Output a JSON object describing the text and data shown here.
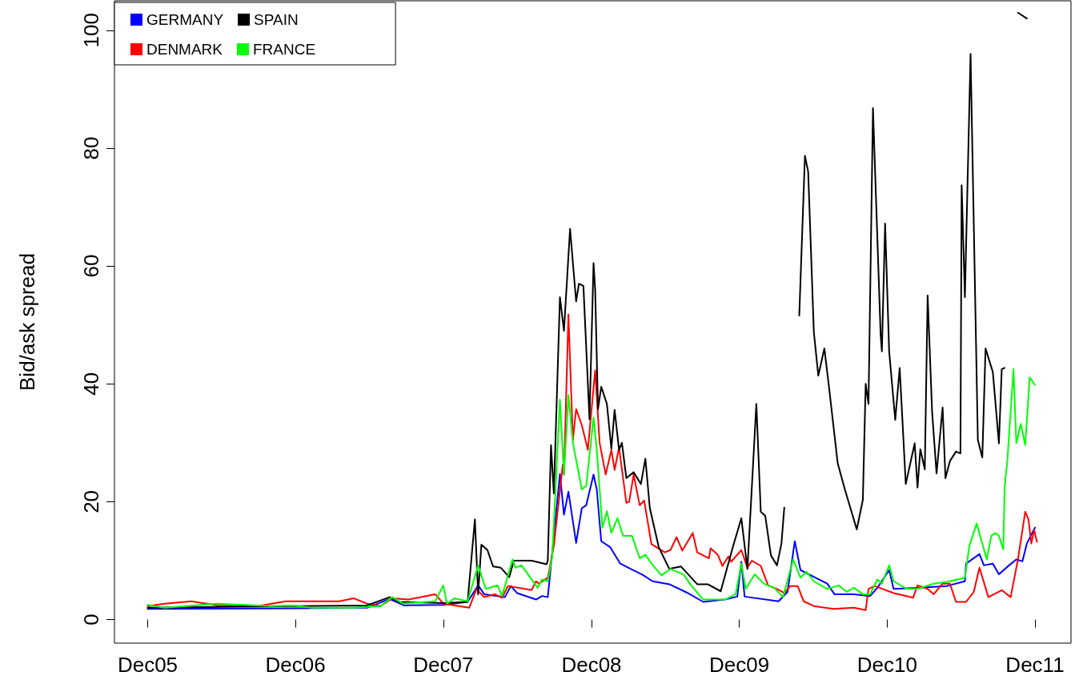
{
  "chart_data": {
    "type": "line",
    "ylabel": "Bid/ask spread",
    "legend": "top left",
    "grid": false,
    "marker": "none",
    "xlim": [
      "2005-09-10",
      "2012-02-28"
    ],
    "xticks": [
      {
        "value": "2005-12-01",
        "label": "Dec05"
      },
      {
        "value": "2006-12-01",
        "label": "Dec06"
      },
      {
        "value": "2007-12-01",
        "label": "Dec07"
      },
      {
        "value": "2008-12-01",
        "label": "Dec08"
      },
      {
        "value": "2009-12-01",
        "label": "Dec09"
      },
      {
        "value": "2010-12-01",
        "label": "Dec10"
      },
      {
        "value": "2011-12-01",
        "label": "Dec11"
      }
    ],
    "ylim": [
      -4,
      105
    ],
    "yticks": [
      0,
      20,
      40,
      60,
      80,
      100
    ],
    "series": [
      {
        "name": "GERMANY",
        "color": "#0000ff",
        "x": [
          "2005-12-01",
          "2006-12-01",
          "2007-05-27",
          "2007-07-21",
          "2007-08-26",
          "2007-12-01",
          "2008-01-30",
          "2008-02-25",
          "2008-03-11",
          "2008-05-01",
          "2008-05-16",
          "2008-05-31",
          "2008-07-17",
          "2008-08-01",
          "2008-08-15",
          "2008-08-19",
          "2008-09-14",
          "2008-09-24",
          "2008-10-05",
          "2008-10-24",
          "2008-11-07",
          "2008-11-18",
          "2008-12-06",
          "2008-12-14",
          "2008-12-25",
          "2009-01-16",
          "2009-02-10",
          "2009-03-11",
          "2009-04-06",
          "2009-05-01",
          "2009-06-11",
          "2009-07-24",
          "2009-09-03",
          "2009-10-27",
          "2009-11-26",
          "2009-12-06",
          "2009-12-14",
          "2010-03-08",
          "2010-03-30",
          "2010-04-17",
          "2010-05-01",
          "2010-07-06",
          "2010-07-24",
          "2010-09-10",
          "2010-10-20",
          "2010-11-07",
          "2010-12-06",
          "2010-12-17",
          "2011-02-21",
          "2011-04-28",
          "2011-06-11",
          "2011-06-14",
          "2011-07-17",
          "2011-07-28",
          "2011-08-19",
          "2011-09-03",
          "2011-09-28",
          "2011-10-16",
          "2011-10-31",
          "2011-11-11",
          "2011-12-01"
        ],
        "values": [
          1.8,
          1.9,
          2.0,
          3.5,
          2.4,
          2.5,
          3.0,
          5.8,
          4.3,
          3.8,
          5.7,
          4.5,
          3.4,
          4.0,
          3.8,
          6.5,
          24.7,
          17.8,
          21.7,
          13,
          18.9,
          19.4,
          24.6,
          22.1,
          13.3,
          12.3,
          9.5,
          8.5,
          7.6,
          6.5,
          6,
          4.6,
          3,
          3.4,
          3.9,
          9.8,
          3.9,
          3.1,
          4.7,
          13.3,
          8.4,
          6.1,
          4.3,
          4.3,
          4.0,
          5.4,
          8.4,
          5.2,
          5.4,
          5.7,
          6.5,
          9.5,
          11.1,
          9.2,
          9.5,
          7.7,
          9.2,
          10.2,
          9.9,
          12.9,
          15.6
        ]
      },
      {
        "name": "DENMARK",
        "color": "#ff0000",
        "x": [
          "2005-12-01",
          "2006-01-12",
          "2006-03-19",
          "2006-05-23",
          "2006-08-30",
          "2006-11-07",
          "2007-01-12",
          "2007-03-19",
          "2007-04-24",
          "2007-05-27",
          "2007-06-29",
          "2007-07-28",
          "2007-09-06",
          "2007-11-11",
          "2007-12-01",
          "2008-02-03",
          "2008-02-21",
          "2008-03-11",
          "2008-04-06",
          "2008-04-24",
          "2008-05-09",
          "2008-07-06",
          "2008-07-17",
          "2008-07-24",
          "2008-08-15",
          "2008-08-30",
          "2008-09-21",
          "2008-09-24",
          "2008-10-05",
          "2008-10-16",
          "2008-10-24",
          "2008-11-07",
          "2008-11-22",
          "2008-12-10",
          "2008-12-21",
          "2009-01-05",
          "2009-01-19",
          "2009-01-27",
          "2009-02-07",
          "2009-02-25",
          "2009-03-04",
          "2009-03-15",
          "2009-03-30",
          "2009-04-10",
          "2009-04-28",
          "2009-05-31",
          "2009-06-14",
          "2009-06-29",
          "2009-07-13",
          "2009-08-08",
          "2009-08-19",
          "2009-09-17",
          "2009-09-21",
          "2009-10-09",
          "2009-10-20",
          "2009-11-04",
          "2009-11-11",
          "2009-12-06",
          "2009-12-21",
          "2010-01-01",
          "2010-01-23",
          "2010-02-10",
          "2010-03-04",
          "2010-03-22",
          "2010-04-06",
          "2010-04-24",
          "2010-05-09",
          "2010-06-03",
          "2010-07-21",
          "2010-09-10",
          "2010-10-09",
          "2010-10-16",
          "2010-10-31",
          "2010-12-17",
          "2011-02-03",
          "2011-02-14",
          "2011-03-11",
          "2011-03-26",
          "2011-04-17",
          "2011-05-05",
          "2011-05-20",
          "2011-06-14",
          "2011-07-03",
          "2011-07-17",
          "2011-08-08",
          "2011-09-10",
          "2011-10-02",
          "2011-10-20",
          "2011-11-07",
          "2011-11-15",
          "2011-11-22",
          "2011-11-29",
          "2011-12-06"
        ],
        "values": [
          2.3,
          2.7,
          3.1,
          2.4,
          2.3,
          3.1,
          3.1,
          3.1,
          3.6,
          2.7,
          2.3,
          3.6,
          3.4,
          4.3,
          2.7,
          2.0,
          5.2,
          3.8,
          4.3,
          3.7,
          5.7,
          5.0,
          6.5,
          6.1,
          7.1,
          12.5,
          26.3,
          24.6,
          51.8,
          30.5,
          35.7,
          33,
          28.8,
          42.3,
          30,
          24.6,
          28.8,
          25.4,
          29.2,
          19.8,
          20,
          24.6,
          19.4,
          20.2,
          12.8,
          11.4,
          11.8,
          14,
          11.7,
          14.7,
          11.4,
          10.4,
          12.1,
          11,
          9.1,
          10.7,
          9.8,
          11.8,
          8.8,
          10,
          9.1,
          5.8,
          5.2,
          4.5,
          5.7,
          5.7,
          3.1,
          2.3,
          1.8,
          2.0,
          1.6,
          5.2,
          5.7,
          4.5,
          3.7,
          5.8,
          5.2,
          4.3,
          6.1,
          6.1,
          3.0,
          3.0,
          4.7,
          8.8,
          3.8,
          5.0,
          3.8,
          10.2,
          18.3,
          17,
          12.9,
          15.2,
          13.2
        ]
      },
      {
        "name": "SPAIN",
        "color": "#000000",
        "x": [
          "2005-12-01",
          "2006-07-17",
          "2006-12-01",
          "2007-05-27",
          "2007-07-21",
          "2007-08-15",
          "2007-12-01",
          "2008-01-30",
          "2008-02-17",
          "2008-02-25",
          "2008-03-04",
          "2008-03-19",
          "2008-04-02",
          "2008-04-21",
          "2008-05-12",
          "2008-05-23",
          "2008-07-06",
          "2008-08-12",
          "2008-08-15",
          "2008-08-23",
          "2008-08-30",
          "2008-09-14",
          "2008-09-24",
          "2008-10-09",
          "2008-10-24",
          "2008-10-31",
          "2008-11-11",
          "2008-11-26",
          "2008-12-06",
          "2008-12-10",
          "2008-12-17",
          "2008-12-25",
          "2009-01-08",
          "2009-01-19",
          "2009-01-27",
          "2009-02-07",
          "2009-02-14",
          "2009-02-25",
          "2009-03-15",
          "2009-04-02",
          "2009-04-13",
          "2009-04-24",
          "2009-05-16",
          "2009-06-11",
          "2009-07-10",
          "2009-08-19",
          "2009-09-14",
          "2009-10-16",
          "2009-11-15",
          "2009-12-06",
          "2009-12-21",
          "2010-01-12",
          "2010-01-23",
          "2010-02-03",
          "2010-02-17",
          "2010-03-04",
          "2010-03-15",
          "2010-03-22",
          "2010-04-06",
          "2010-04-13",
          "2010-04-28",
          "2010-05-12",
          "2010-05-20",
          "2010-06-03",
          "2010-06-14",
          "2010-06-29",
          "2010-07-10",
          "2010-08-01",
          "2010-08-19",
          "2010-09-17",
          "2010-10-02",
          "2010-10-09",
          "2010-10-16",
          "2010-10-27",
          "2010-11-15",
          "2010-11-18",
          "2010-11-26",
          "2010-12-06",
          "2010-12-21",
          "2011-01-01",
          "2011-01-16",
          "2011-02-07",
          "2011-02-14",
          "2011-02-21",
          "2011-03-04",
          "2011-03-11",
          "2011-03-22",
          "2011-04-02",
          "2011-04-17",
          "2011-04-24",
          "2011-05-05",
          "2011-05-20",
          "2011-05-31",
          "2011-06-03",
          "2011-06-11",
          "2011-06-25",
          "2011-07-13",
          "2011-07-24",
          "2011-08-01",
          "2011-08-19",
          "2011-09-03",
          "2011-09-10",
          "2011-09-17",
          "2011-10-02",
          "2011-10-20",
          "2011-11-11"
        ],
        "values": [
          2.0,
          2.2,
          2.3,
          2.4,
          3.8,
          3.0,
          2.8,
          3.0,
          17,
          4.3,
          12.7,
          11.8,
          9,
          8.8,
          7.2,
          10,
          10,
          9.4,
          10,
          29.6,
          21.4,
          54.7,
          49,
          66.3,
          54,
          57,
          56.6,
          34,
          60.5,
          56,
          35.7,
          39.5,
          36.6,
          29,
          35.6,
          28.8,
          30,
          24,
          25,
          23,
          27.3,
          18.9,
          12.3,
          8.6,
          9,
          6,
          6,
          4.8,
          12.3,
          17.2,
          8.6,
          36.6,
          18.3,
          17.6,
          10.9,
          9.2,
          12.9,
          19,
          null,
          null,
          51.6,
          78.7,
          76,
          48.8,
          41.4,
          46,
          39.7,
          26.5,
          22,
          15.3,
          20.3,
          40,
          36.6,
          86.8,
          48.2,
          45.5,
          67.2,
          45.5,
          33.9,
          42.7,
          23,
          29.9,
          22.4,
          28.9,
          25.5,
          55,
          35.3,
          24.8,
          36,
          24,
          26.9,
          28.5,
          28.2,
          73.7,
          54.7,
          96,
          30.5,
          27.5,
          46,
          42,
          29.9,
          42.5,
          42.7,
          null,
          103,
          102
        ]
      },
      {
        "name": "FRANCE",
        "color": "#00ff00",
        "x": [
          "2005-12-01",
          "2006-01-12",
          "2006-05-23",
          "2006-10-02",
          "2006-11-26",
          "2007-01-12",
          "2007-04-24",
          "2007-06-29",
          "2007-07-28",
          "2007-08-23",
          "2007-11-11",
          "2007-12-01",
          "2007-12-10",
          "2007-12-28",
          "2008-01-30",
          "2008-02-25",
          "2008-03-15",
          "2008-04-13",
          "2008-04-24",
          "2008-05-20",
          "2008-05-27",
          "2008-06-11",
          "2008-07-21",
          "2008-08-01",
          "2008-08-15",
          "2008-08-26",
          "2008-09-14",
          "2008-09-24",
          "2008-10-05",
          "2008-10-16",
          "2008-11-07",
          "2008-11-18",
          "2008-12-06",
          "2008-12-14",
          "2008-12-28",
          "2009-01-08",
          "2009-01-19",
          "2009-02-03",
          "2009-02-17",
          "2009-03-11",
          "2009-03-30",
          "2009-04-13",
          "2009-04-28",
          "2009-05-23",
          "2009-06-14",
          "2009-07-17",
          "2009-08-04",
          "2009-09-03",
          "2009-10-27",
          "2009-11-22",
          "2009-12-06",
          "2009-12-17",
          "2010-01-08",
          "2010-01-30",
          "2010-02-25",
          "2010-03-19",
          "2010-04-13",
          "2010-05-01",
          "2010-05-16",
          "2010-06-03",
          "2010-07-06",
          "2010-08-04",
          "2010-08-23",
          "2010-09-10",
          "2010-10-02",
          "2010-10-20",
          "2010-11-07",
          "2010-11-18",
          "2010-12-06",
          "2010-12-17",
          "2011-01-19",
          "2011-02-14",
          "2011-03-26",
          "2011-04-28",
          "2011-06-11",
          "2011-06-22",
          "2011-07-10",
          "2011-08-04",
          "2011-08-15",
          "2011-08-26",
          "2011-09-03",
          "2011-09-14",
          "2011-09-17",
          "2011-09-24",
          "2011-10-09",
          "2011-10-16",
          "2011-10-27",
          "2011-11-07",
          "2011-11-18",
          "2011-12-01"
        ],
        "values": [
          2.5,
          2.0,
          2.7,
          2.3,
          2.4,
          2.0,
          2.0,
          2.3,
          3.8,
          2.7,
          3.1,
          5.8,
          2.7,
          3.6,
          3.1,
          9.2,
          5.2,
          5.8,
          4.0,
          10.2,
          8.8,
          9.2,
          5.4,
          6.8,
          6.5,
          10.6,
          37.3,
          24.6,
          38.1,
          30,
          22.1,
          22.7,
          34.3,
          28.8,
          15.6,
          18.4,
          14.7,
          17.2,
          14.2,
          14.2,
          10.4,
          11,
          9.5,
          7.5,
          8.6,
          7.6,
          5.8,
          3.4,
          3.4,
          4.3,
          9.5,
          5.2,
          7.7,
          6.1,
          5.4,
          3.8,
          10.2,
          7.1,
          8.1,
          6.5,
          5.2,
          5.8,
          4.7,
          5.4,
          4.3,
          4.3,
          6.8,
          6.1,
          9.2,
          6.5,
          5.2,
          5.2,
          6.1,
          6.4,
          7.1,
          12.5,
          16.3,
          10.2,
          14.2,
          14.7,
          14.2,
          11.9,
          22.4,
          27.1,
          42.5,
          29.9,
          33.2,
          29.6,
          41.1,
          39.8
        ]
      }
    ]
  }
}
